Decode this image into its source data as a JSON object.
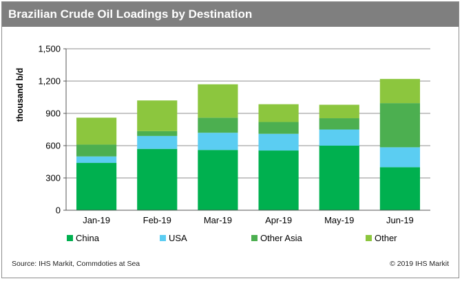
{
  "header": {
    "title": "Brazilian Crude Oil Loadings by Destination"
  },
  "footer": {
    "source": "Source: IHS Markit, Commdoties at Sea",
    "copyright": "© 2019 IHS Markit"
  },
  "chart_data": {
    "type": "bar",
    "stacked": true,
    "title": "Brazilian Crude Oil Loadings by Destination",
    "xlabel": "",
    "ylabel": "thousand b/d",
    "categories": [
      "Jan-19",
      "Feb-19",
      "Mar-19",
      "Apr-19",
      "May-19",
      "Jun-19"
    ],
    "ylim": [
      0,
      1500
    ],
    "yticks": [
      0,
      300,
      600,
      900,
      1200,
      1500
    ],
    "ytick_labels": [
      "0",
      "300",
      "600",
      "900",
      "1,200",
      "1,500"
    ],
    "grid": true,
    "legend_position": "bottom",
    "series": [
      {
        "name": "China",
        "color": "#00b04f",
        "values": [
          440,
          570,
          560,
          555,
          600,
          400
        ]
      },
      {
        "name": "USA",
        "color": "#5bcdf2",
        "values": [
          60,
          120,
          160,
          155,
          150,
          185
        ]
      },
      {
        "name": "Other Asia",
        "color": "#4caf50",
        "values": [
          110,
          45,
          140,
          110,
          105,
          410
        ]
      },
      {
        "name": "Other",
        "color": "#8cc63e",
        "values": [
          250,
          285,
          310,
          165,
          125,
          225
        ]
      }
    ]
  }
}
